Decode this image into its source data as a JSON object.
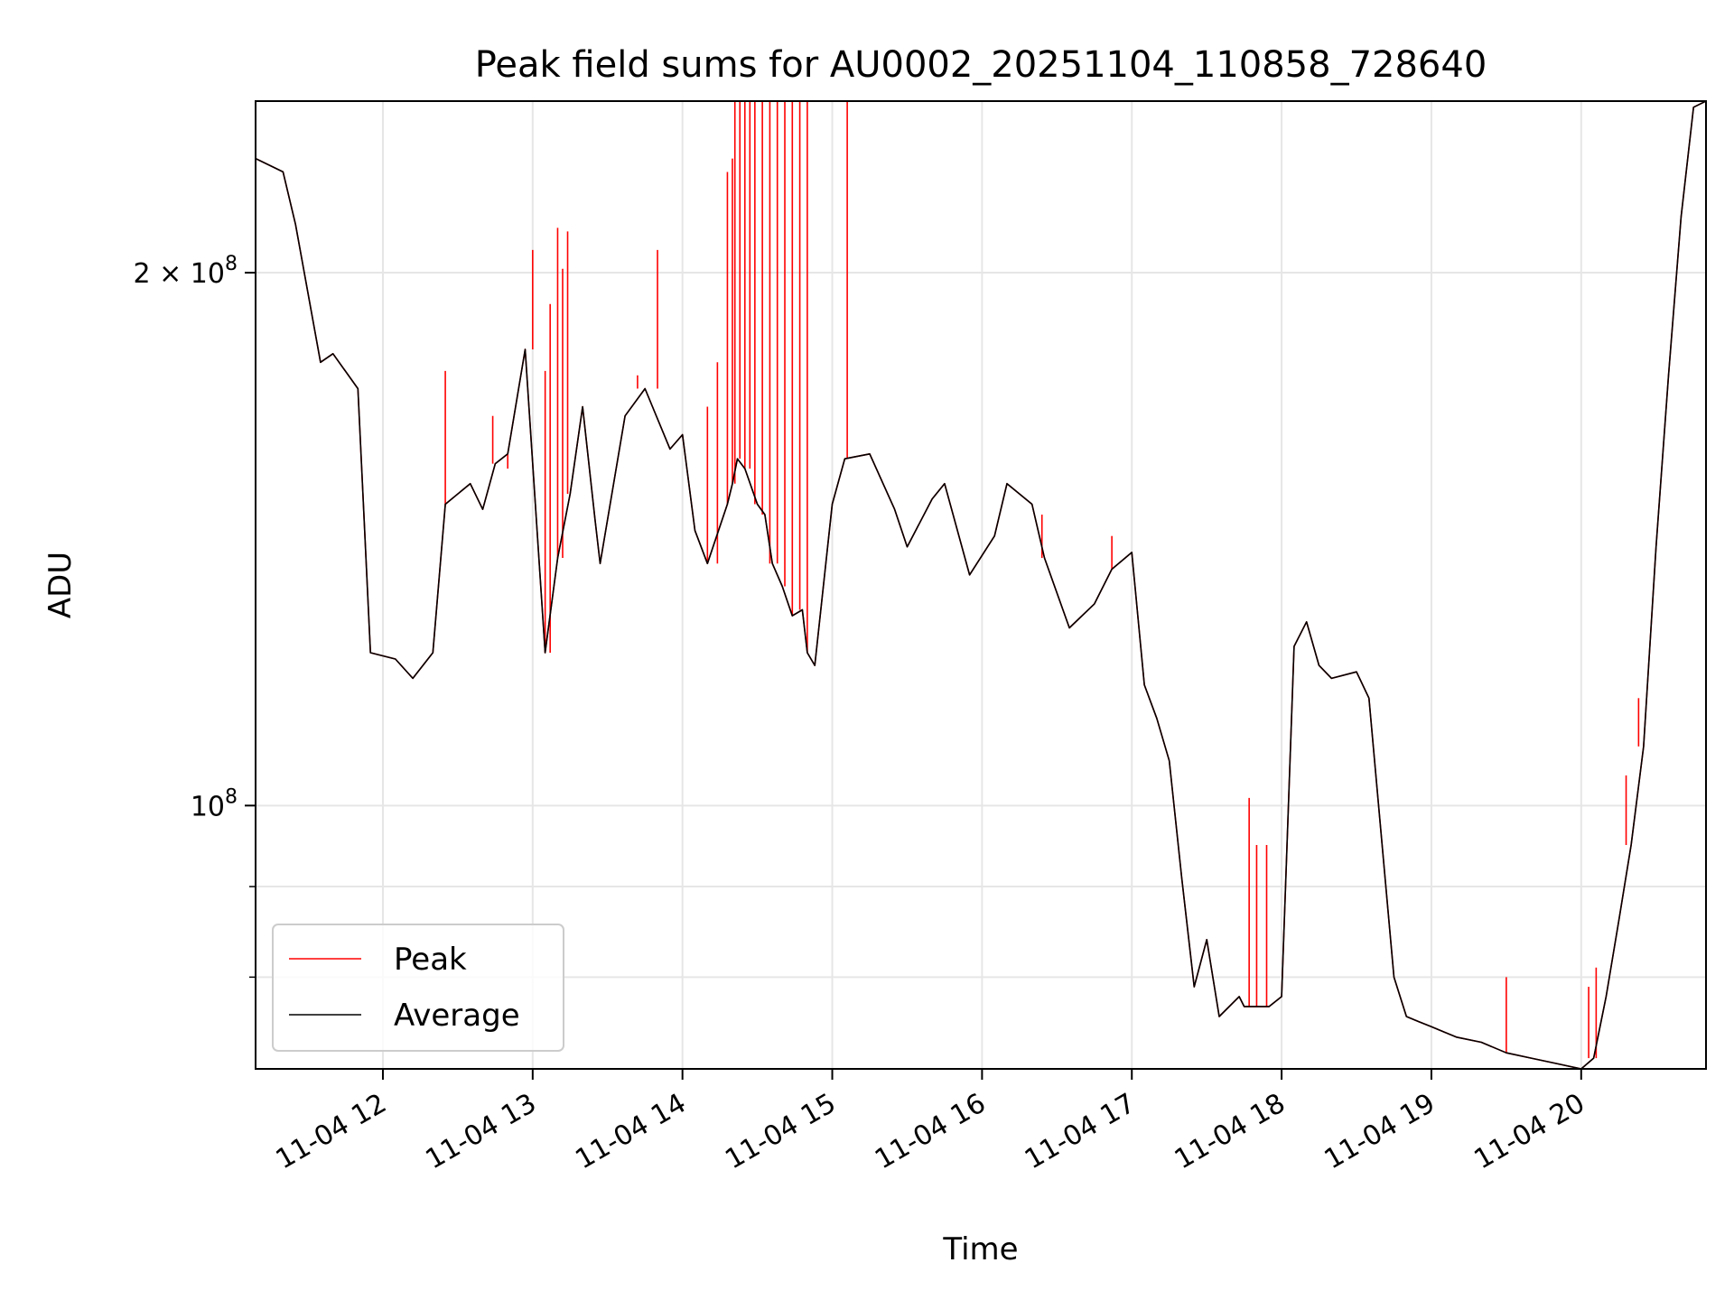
{
  "chart_data": {
    "type": "line",
    "title": "Peak field sums for AU0002_20251104_110858_728640",
    "xlabel": "Time",
    "ylabel": "ADU",
    "x_scale": "time",
    "y_scale": "log",
    "xlim": [
      "11-04 11:09",
      "11-04 20:50"
    ],
    "ylim": [
      71000000,
      250000000
    ],
    "grid": true,
    "legend_position": "lower-left",
    "x_ticks": [
      "11-04 12",
      "11-04 13",
      "11-04 14",
      "11-04 15",
      "11-04 16",
      "11-04 17",
      "11-04 18",
      "11-04 19",
      "11-04 20"
    ],
    "x_tick_times": [
      "11-04 12:00",
      "11-04 13:00",
      "11-04 14:00",
      "11-04 15:00",
      "11-04 16:00",
      "11-04 17:00",
      "11-04 18:00",
      "11-04 19:00",
      "11-04 20:00"
    ],
    "y_major_ticks": [
      {
        "value": 200000000,
        "label_base": "2 × 10",
        "label_exp": "8"
      },
      {
        "value": 100000000,
        "label_base": "10",
        "label_exp": "8"
      }
    ],
    "y_minor_ticks": [
      80000000,
      90000000
    ],
    "series": [
      {
        "name": "Peak",
        "color": "#ff0000",
        "x": [
          "11-04 11:09",
          "11-04 11:20",
          "11-04 11:25",
          "11-04 11:35",
          "11-04 11:40",
          "11-04 11:50",
          "11-04 11:55",
          "11-04 12:05",
          "11-04 12:12",
          "11-04 12:20",
          "11-04 12:25",
          "11-04 12:35",
          "11-04 12:40",
          "11-04 12:45",
          "11-04 12:50",
          "11-04 12:57",
          "11-04 13:05",
          "11-04 13:10",
          "11-04 13:15",
          "11-04 13:20",
          "11-04 13:25",
          "11-04 13:27",
          "11-04 13:37",
          "11-04 13:45",
          "11-04 13:55",
          "11-04 14:00",
          "11-04 14:05",
          "11-04 14:10",
          "11-04 14:18",
          "11-04 14:20",
          "11-04 14:22",
          "11-04 14:25",
          "11-04 14:30",
          "11-04 14:33",
          "11-04 14:36",
          "11-04 14:40",
          "11-04 14:44",
          "11-04 14:48",
          "11-04 14:50",
          "11-04 14:53",
          "11-04 15:00",
          "11-04 15:05",
          "11-04 15:15",
          "11-04 15:25",
          "11-04 15:30",
          "11-04 15:40",
          "11-04 15:45",
          "11-04 15:55",
          "11-04 16:05",
          "11-04 16:10",
          "11-04 16:20",
          "11-04 16:25",
          "11-04 16:35",
          "11-04 16:45",
          "11-04 16:52",
          "11-04 17:00",
          "11-04 17:05",
          "11-04 17:10",
          "11-04 17:15",
          "11-04 17:20",
          "11-04 17:25",
          "11-04 17:30",
          "11-04 17:35",
          "11-04 17:43",
          "11-04 17:45",
          "11-04 17:50",
          "11-04 17:55",
          "11-04 18:00",
          "11-04 18:05",
          "11-04 18:10",
          "11-04 18:15",
          "11-04 18:20",
          "11-04 18:30",
          "11-04 18:35",
          "11-04 18:45",
          "11-04 18:50",
          "11-04 18:55",
          "11-04 19:00",
          "11-04 19:10",
          "11-04 19:20",
          "11-04 19:30",
          "11-04 19:40",
          "11-04 19:50",
          "11-04 20:00",
          "11-04 20:05",
          "11-04 20:10",
          "11-04 20:15",
          "11-04 20:20",
          "11-04 20:25",
          "11-04 20:30",
          "11-04 20:35",
          "11-04 20:40",
          "11-04 20:45",
          "11-04 20:50"
        ],
        "y": [
          232000000,
          228000000,
          213000000,
          178000000,
          180000000,
          172000000,
          122000000,
          121000000,
          118000000,
          122000000,
          148000000,
          152000000,
          147000000,
          156000000,
          158000000,
          181000000,
          122000000,
          138000000,
          150000000,
          168000000,
          145000000,
          137000000,
          166000000,
          172000000,
          159000000,
          162000000,
          143000000,
          137000000,
          148000000,
          152000000,
          157000000,
          155000000,
          148000000,
          146000000,
          137000000,
          133000000,
          128000000,
          129000000,
          122000000,
          120000000,
          148000000,
          157000000,
          158000000,
          147000000,
          140000000,
          149000000,
          152000000,
          135000000,
          142000000,
          152000000,
          148000000,
          138000000,
          126000000,
          130000000,
          136000000,
          139000000,
          117000000,
          112000000,
          106000000,
          91000000,
          79000000,
          84000000,
          76000000,
          78000000,
          77000000,
          77000000,
          77000000,
          78000000,
          123000000,
          127000000,
          120000000,
          118000000,
          119000000,
          115000000,
          80000000,
          76000000,
          75500000,
          75000000,
          74000000,
          73500000,
          72500000,
          72000000,
          71500000,
          71000000,
          72000000,
          78000000,
          86000000,
          95000000,
          108000000,
          140000000,
          175000000,
          215000000,
          248000000,
          250000000
        ]
      },
      {
        "name": "Average",
        "color": "#000000",
        "x": [
          "11-04 11:09",
          "11-04 11:20",
          "11-04 11:25",
          "11-04 11:35",
          "11-04 11:40",
          "11-04 11:50",
          "11-04 11:55",
          "11-04 12:05",
          "11-04 12:12",
          "11-04 12:20",
          "11-04 12:25",
          "11-04 12:35",
          "11-04 12:40",
          "11-04 12:45",
          "11-04 12:50",
          "11-04 12:57",
          "11-04 13:05",
          "11-04 13:10",
          "11-04 13:15",
          "11-04 13:20",
          "11-04 13:25",
          "11-04 13:27",
          "11-04 13:37",
          "11-04 13:45",
          "11-04 13:55",
          "11-04 14:00",
          "11-04 14:05",
          "11-04 14:10",
          "11-04 14:18",
          "11-04 14:20",
          "11-04 14:22",
          "11-04 14:25",
          "11-04 14:30",
          "11-04 14:33",
          "11-04 14:36",
          "11-04 14:40",
          "11-04 14:44",
          "11-04 14:48",
          "11-04 14:50",
          "11-04 14:53",
          "11-04 15:00",
          "11-04 15:05",
          "11-04 15:15",
          "11-04 15:25",
          "11-04 15:30",
          "11-04 15:40",
          "11-04 15:45",
          "11-04 15:55",
          "11-04 16:05",
          "11-04 16:10",
          "11-04 16:20",
          "11-04 16:25",
          "11-04 16:35",
          "11-04 16:45",
          "11-04 16:52",
          "11-04 17:00",
          "11-04 17:05",
          "11-04 17:10",
          "11-04 17:15",
          "11-04 17:20",
          "11-04 17:25",
          "11-04 17:30",
          "11-04 17:35",
          "11-04 17:43",
          "11-04 17:45",
          "11-04 17:50",
          "11-04 17:55",
          "11-04 18:00",
          "11-04 18:05",
          "11-04 18:10",
          "11-04 18:15",
          "11-04 18:20",
          "11-04 18:30",
          "11-04 18:35",
          "11-04 18:45",
          "11-04 18:50",
          "11-04 18:55",
          "11-04 19:00",
          "11-04 19:10",
          "11-04 19:20",
          "11-04 19:30",
          "11-04 19:40",
          "11-04 19:50",
          "11-04 20:00",
          "11-04 20:05",
          "11-04 20:10",
          "11-04 20:15",
          "11-04 20:20",
          "11-04 20:25",
          "11-04 20:30",
          "11-04 20:35",
          "11-04 20:40",
          "11-04 20:45",
          "11-04 20:50"
        ],
        "y": [
          232000000,
          228000000,
          213000000,
          178000000,
          180000000,
          172000000,
          122000000,
          121000000,
          118000000,
          122000000,
          148000000,
          152000000,
          147000000,
          156000000,
          158000000,
          181000000,
          122000000,
          138000000,
          150000000,
          168000000,
          145000000,
          137000000,
          166000000,
          172000000,
          159000000,
          162000000,
          143000000,
          137000000,
          148000000,
          152000000,
          157000000,
          155000000,
          148000000,
          146000000,
          137000000,
          133000000,
          128000000,
          129000000,
          122000000,
          120000000,
          148000000,
          157000000,
          158000000,
          147000000,
          140000000,
          149000000,
          152000000,
          135000000,
          142000000,
          152000000,
          148000000,
          138000000,
          126000000,
          130000000,
          136000000,
          139000000,
          117000000,
          112000000,
          106000000,
          91000000,
          79000000,
          84000000,
          76000000,
          78000000,
          77000000,
          77000000,
          77000000,
          78000000,
          123000000,
          127000000,
          120000000,
          118000000,
          119000000,
          115000000,
          80000000,
          76000000,
          75500000,
          75000000,
          74000000,
          73500000,
          72500000,
          72000000,
          71500000,
          71000000,
          72000000,
          78000000,
          86000000,
          95000000,
          108000000,
          140000000,
          175000000,
          215000000,
          248000000,
          250000000
        ]
      }
    ],
    "peak_spikes": [
      {
        "x": "11-04 12:25",
        "y": 176000000
      },
      {
        "x": "11-04 12:44",
        "y": 166000000
      },
      {
        "x": "11-04 12:50",
        "y": 155000000
      },
      {
        "x": "11-04 13:00",
        "y": 206000000
      },
      {
        "x": "11-04 13:05",
        "y": 176000000
      },
      {
        "x": "11-04 13:07",
        "y": 192000000
      },
      {
        "x": "11-04 13:10",
        "y": 212000000
      },
      {
        "x": "11-04 13:12",
        "y": 201000000
      },
      {
        "x": "11-04 13:14",
        "y": 211000000
      },
      {
        "x": "11-04 13:42",
        "y": 175000000
      },
      {
        "x": "11-04 13:50",
        "y": 206000000
      },
      {
        "x": "11-04 14:10",
        "y": 168000000
      },
      {
        "x": "11-04 14:14",
        "y": 178000000
      },
      {
        "x": "11-04 14:18",
        "y": 228000000
      },
      {
        "x": "11-04 14:20",
        "y": 232000000
      },
      {
        "x": "11-04 14:21",
        "y": 250000000
      },
      {
        "x": "11-04 14:23",
        "y": 250000000
      },
      {
        "x": "11-04 14:25",
        "y": 250000000
      },
      {
        "x": "11-04 14:27",
        "y": 250000000
      },
      {
        "x": "11-04 14:29",
        "y": 250000000
      },
      {
        "x": "11-04 14:32",
        "y": 250000000
      },
      {
        "x": "11-04 14:35",
        "y": 250000000
      },
      {
        "x": "11-04 14:38",
        "y": 250000000
      },
      {
        "x": "11-04 14:41",
        "y": 250000000
      },
      {
        "x": "11-04 14:44",
        "y": 250000000
      },
      {
        "x": "11-04 14:47",
        "y": 250000000
      },
      {
        "x": "11-04 14:50",
        "y": 250000000
      },
      {
        "x": "11-04 15:06",
        "y": 250000000
      },
      {
        "x": "11-04 16:24",
        "y": 146000000
      },
      {
        "x": "11-04 16:52",
        "y": 142000000
      },
      {
        "x": "11-04 17:47",
        "y": 101000000
      },
      {
        "x": "11-04 17:50",
        "y": 95000000
      },
      {
        "x": "11-04 17:54",
        "y": 95000000
      },
      {
        "x": "11-04 19:30",
        "y": 80000000
      },
      {
        "x": "11-04 20:03",
        "y": 79000000
      },
      {
        "x": "11-04 20:06",
        "y": 81000000
      },
      {
        "x": "11-04 20:18",
        "y": 104000000
      },
      {
        "x": "11-04 20:23",
        "y": 115000000
      }
    ]
  }
}
